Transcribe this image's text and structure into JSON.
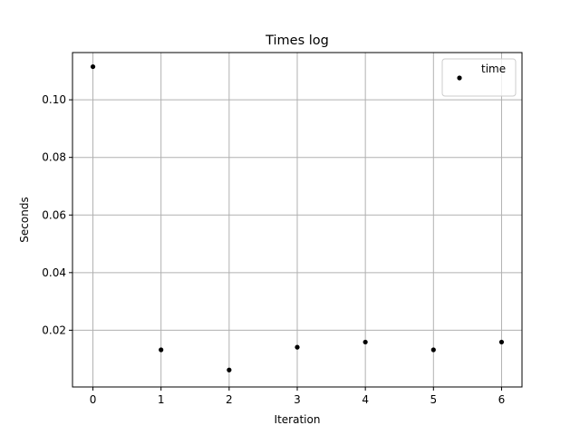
{
  "chart_data": {
    "type": "scatter",
    "title": "Times log",
    "xlabel": "Iteration",
    "ylabel": "Seconds",
    "x": [
      0,
      1,
      2,
      3,
      4,
      5,
      6
    ],
    "series": [
      {
        "name": "time",
        "x": [
          0,
          1,
          2,
          3,
          4,
          5,
          6
        ],
        "y": [
          0.1115,
          0.0132,
          0.0062,
          0.0141,
          0.0159,
          0.0132,
          0.0159
        ],
        "color": "#000000",
        "marker": "point"
      }
    ],
    "xlim": [
      -0.3,
      6.3
    ],
    "ylim": [
      0.0003,
      0.1164
    ],
    "xticks": [
      0,
      1,
      2,
      3,
      4,
      5,
      6
    ],
    "xtick_labels": [
      "0",
      "1",
      "2",
      "3",
      "4",
      "5",
      "6"
    ],
    "yticks": [
      0.02,
      0.04,
      0.06,
      0.08,
      0.1
    ],
    "ytick_labels": [
      "0.02",
      "0.04",
      "0.06",
      "0.08",
      "0.10"
    ],
    "grid": true,
    "grid_color": "#b0b0b0",
    "legend": {
      "placement": "upper-right",
      "entries": [
        "time"
      ]
    }
  }
}
